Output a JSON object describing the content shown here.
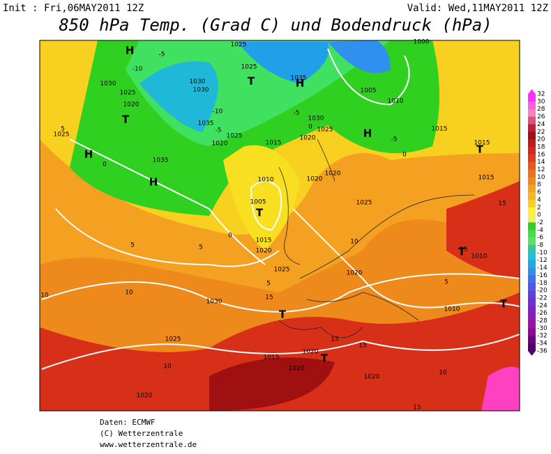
{
  "header": {
    "init": "Init : Fri,06MAY2011 12Z",
    "valid": "Valid: Wed,11MAY2011 12Z",
    "title": "850 hPa Temp. (Grad C) und Bodendruck (hPa)"
  },
  "colorbar": {
    "labels": [
      32,
      30,
      28,
      26,
      24,
      22,
      20,
      18,
      16,
      14,
      12,
      10,
      8,
      6,
      4,
      2,
      0,
      -2,
      -4,
      -6,
      -8,
      -10,
      -12,
      -14,
      -16,
      -18,
      -20,
      -22,
      -24,
      -26,
      -28,
      -30,
      -32,
      -34,
      -36
    ],
    "colors": [
      "#ff30ff",
      "#ff60e0",
      "#ff80c0",
      "#e05080",
      "#c02040",
      "#a01010",
      "#c01818",
      "#d02820",
      "#e03c18",
      "#e85818",
      "#ee7018",
      "#f08818",
      "#f4a020",
      "#f8b820",
      "#f8d020",
      "#fff030",
      "#f0f060",
      "#30d020",
      "#40e040",
      "#60e060",
      "#30c8a0",
      "#20c0e0",
      "#20a8e8",
      "#3090f0",
      "#4070f0",
      "#5058e8",
      "#6040e0",
      "#7030d8",
      "#8020c8",
      "#9018b8",
      "#a010a8",
      "#900898",
      "#700080",
      "#500068"
    ]
  },
  "map": {
    "labels": [
      "H",
      "H",
      "H",
      "T",
      "T",
      "T",
      "H",
      "H",
      "T",
      "T",
      "T",
      "T",
      "T",
      "1025",
      "1030",
      "1025",
      "1020",
      "1025",
      "1035",
      "1030",
      "1030",
      "1035",
      "1025",
      "1020",
      "1015",
      "1020",
      "1025",
      "1030",
      "1035",
      "1025",
      "1010",
      "1005",
      "1015",
      "1020",
      "1025",
      "1030",
      "1025",
      "1020",
      "1015",
      "1020",
      "1020",
      "1020",
      "1010",
      "1010",
      "1015",
      "1015",
      "1015",
      "1010",
      "1005",
      "1000",
      "1025",
      "1020",
      "1020",
      "1020",
      "-5",
      "-10",
      "-10",
      "-5",
      "-5",
      "-5",
      "0",
      "0",
      "0",
      "0",
      "5",
      "5",
      "5",
      "5",
      "10",
      "10",
      "10",
      "15",
      "15",
      "15",
      "15",
      "10",
      "15",
      "15",
      "10",
      "5"
    ]
  },
  "footer": {
    "source": "Daten: ECMWF",
    "copyright": "(C) Wetterzentrale",
    "url": "www.wetterzentrale.de"
  }
}
